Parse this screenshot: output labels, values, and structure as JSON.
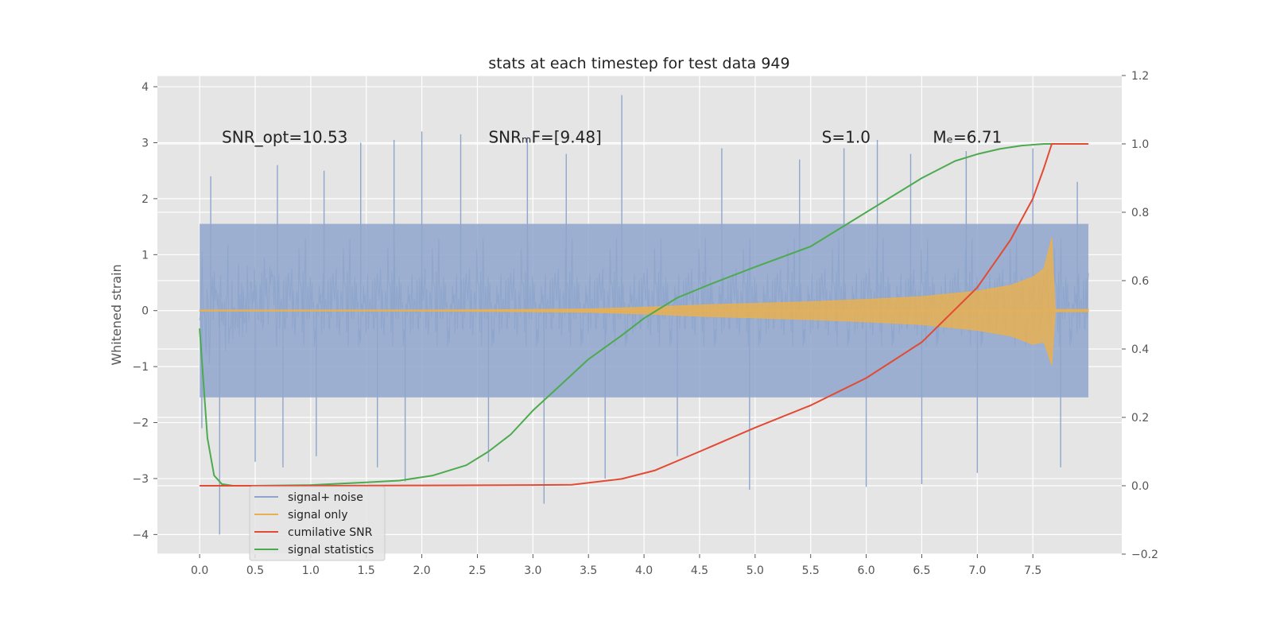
{
  "chart_data": {
    "type": "line",
    "title": "stats at each timestep for test data 949",
    "xlabel": "",
    "ylabel": "Whitened strain",
    "y2label": "",
    "xlim": [
      -0.38,
      8.3
    ],
    "ylim": [
      -4.35,
      4.2
    ],
    "y2lim": [
      -0.2,
      1.2
    ],
    "xticks": [
      "0.0",
      "0.5",
      "1.0",
      "1.5",
      "2.0",
      "2.5",
      "3.0",
      "3.5",
      "4.0",
      "4.5",
      "5.0",
      "5.5",
      "6.0",
      "6.5",
      "7.0",
      "7.5"
    ],
    "yticks": [
      "−4",
      "−3",
      "−2",
      "−1",
      "0",
      "1",
      "2",
      "3",
      "4"
    ],
    "y2ticks": [
      "−0.2",
      "0.0",
      "0.2",
      "0.4",
      "0.6",
      "0.8",
      "1.0",
      "1.2"
    ],
    "grid": true,
    "legend_position": "lower-left",
    "colors": {
      "background": "#e5e5e5",
      "grid": "#ffffff",
      "signal_noise": "#8fa6cc",
      "signal_only": "#e8b052",
      "cumulative_snr": "#e24a33",
      "signal_statistics": "#4caa4f"
    },
    "annotations": [
      {
        "x": 0.2,
        "y": 3.0,
        "text": "SNR_opt=10.53"
      },
      {
        "x": 2.6,
        "y": 3.0,
        "text": "SNRₘF=[9.48]"
      },
      {
        "x": 5.6,
        "y": 3.0,
        "text": "S=1.0"
      },
      {
        "x": 6.6,
        "y": 3.0,
        "text": "Mₑ=6.71"
      }
    ],
    "series": [
      {
        "name": "signal+ noise",
        "axis": "left",
        "kind": "noise_band",
        "x_range": [
          0.0,
          8.0
        ],
        "typical_range": [
          -1.7,
          1.7
        ],
        "spikes": [
          {
            "x": 0.02,
            "y": -2.1
          },
          {
            "x": 0.1,
            "y": 2.4
          },
          {
            "x": 0.18,
            "y": -4.0
          },
          {
            "x": 0.5,
            "y": -2.7
          },
          {
            "x": 0.7,
            "y": 2.6
          },
          {
            "x": 0.75,
            "y": -2.8
          },
          {
            "x": 1.05,
            "y": -2.6
          },
          {
            "x": 1.12,
            "y": 2.5
          },
          {
            "x": 1.45,
            "y": 3.0
          },
          {
            "x": 1.6,
            "y": -2.8
          },
          {
            "x": 1.75,
            "y": 3.05
          },
          {
            "x": 1.85,
            "y": -3.05
          },
          {
            "x": 2.0,
            "y": 3.2
          },
          {
            "x": 2.35,
            "y": 3.15
          },
          {
            "x": 2.6,
            "y": -2.7
          },
          {
            "x": 2.95,
            "y": 3.1
          },
          {
            "x": 3.1,
            "y": -3.45
          },
          {
            "x": 3.3,
            "y": 2.8
          },
          {
            "x": 3.65,
            "y": -3.0
          },
          {
            "x": 3.8,
            "y": 3.85
          },
          {
            "x": 4.3,
            "y": -2.6
          },
          {
            "x": 4.7,
            "y": 2.9
          },
          {
            "x": 4.95,
            "y": -3.2
          },
          {
            "x": 5.4,
            "y": 2.7
          },
          {
            "x": 5.8,
            "y": 2.9
          },
          {
            "x": 6.0,
            "y": -3.15
          },
          {
            "x": 6.1,
            "y": 3.05
          },
          {
            "x": 6.4,
            "y": 2.8
          },
          {
            "x": 6.5,
            "y": -3.1
          },
          {
            "x": 6.9,
            "y": 2.85
          },
          {
            "x": 7.0,
            "y": -2.9
          },
          {
            "x": 7.5,
            "y": 2.9
          },
          {
            "x": 7.75,
            "y": -2.8
          },
          {
            "x": 7.9,
            "y": 2.3
          }
        ]
      },
      {
        "name": "signal only",
        "axis": "left",
        "kind": "chirp_envelope",
        "x": [
          0.0,
          1.0,
          2.0,
          3.0,
          3.5,
          4.0,
          4.5,
          5.0,
          5.5,
          6.0,
          6.5,
          7.0,
          7.3,
          7.5,
          7.6,
          7.67,
          7.7,
          8.0
        ],
        "amplitude": [
          0.01,
          0.01,
          0.01,
          0.02,
          0.03,
          0.06,
          0.1,
          0.13,
          0.16,
          0.2,
          0.25,
          0.35,
          0.45,
          0.6,
          0.75,
          1.3,
          0.02,
          0.02
        ]
      },
      {
        "name": "cumilative SNR",
        "axis": "right",
        "x": [
          0.0,
          1.0,
          2.0,
          3.0,
          3.35,
          3.8,
          4.1,
          4.5,
          5.0,
          5.5,
          6.0,
          6.5,
          7.0,
          7.3,
          7.5,
          7.6,
          7.67,
          8.0
        ],
        "values": [
          0.0,
          0.0,
          0.001,
          0.002,
          0.003,
          0.02,
          0.045,
          0.1,
          0.17,
          0.235,
          0.315,
          0.42,
          0.58,
          0.72,
          0.84,
          0.93,
          1.0,
          1.0
        ]
      },
      {
        "name": "signal statistics",
        "axis": "right",
        "x": [
          0.0,
          0.07,
          0.13,
          0.2,
          0.3,
          0.5,
          1.0,
          1.5,
          1.8,
          2.1,
          2.4,
          2.6,
          2.8,
          3.0,
          3.2,
          3.5,
          3.8,
          4.0,
          4.3,
          4.6,
          5.0,
          5.5,
          6.0,
          6.5,
          6.8,
          7.0,
          7.2,
          7.4,
          7.6,
          8.0
        ],
        "values": [
          0.46,
          0.14,
          0.03,
          0.005,
          0.0,
          0.0,
          0.002,
          0.01,
          0.015,
          0.03,
          0.06,
          0.1,
          0.15,
          0.22,
          0.28,
          0.37,
          0.44,
          0.49,
          0.55,
          0.59,
          0.64,
          0.7,
          0.8,
          0.9,
          0.95,
          0.97,
          0.985,
          0.995,
          1.0,
          1.0
        ]
      }
    ]
  }
}
